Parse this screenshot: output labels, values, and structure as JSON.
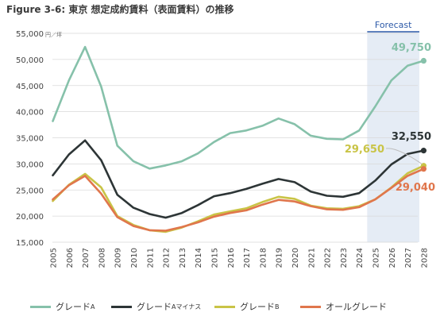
{
  "title": "Figure 3-6: 東京 想定成約賃料（表面賃料）の推移",
  "chart_data": {
    "type": "line",
    "title": "Figure 3-6: 東京 想定成約賃料（表面賃料）の推移",
    "ylabel_unit": "円／坪",
    "x": [
      "2005",
      "2006",
      "2007",
      "2008",
      "2009",
      "2010",
      "2011",
      "2012",
      "2013",
      "2014",
      "2015",
      "2016",
      "2017",
      "2018",
      "2019",
      "2020",
      "2021",
      "2022",
      "2023",
      "2024",
      "2025",
      "2026",
      "2027",
      "2028"
    ],
    "ylim": [
      15000,
      55000
    ],
    "yticks": [
      "15,000",
      "20,000",
      "25,000",
      "30,000",
      "35,000",
      "40,000",
      "45,000",
      "50,000",
      "55,000"
    ],
    "grid": true,
    "forecast_label": "Forecast",
    "forecast_start": "2025",
    "forecast_end": "2028",
    "legend_position": "bottom",
    "series": [
      {
        "name": "グレードA",
        "color": "#86c1aa",
        "values": [
          38200,
          46000,
          52400,
          44800,
          33500,
          30500,
          29100,
          29700,
          30500,
          32000,
          34200,
          35900,
          36400,
          37300,
          38700,
          37600,
          35400,
          34800,
          34700,
          36400,
          41000,
          46000,
          48800,
          49750
        ]
      },
      {
        "name": "グレードAマイナス",
        "color": "#2d3536",
        "values": [
          27800,
          31800,
          34500,
          30700,
          24100,
          21600,
          20400,
          19700,
          20600,
          22100,
          23800,
          24400,
          25200,
          26200,
          27100,
          26500,
          24700,
          23900,
          23700,
          24400,
          26800,
          29900,
          31900,
          32550
        ]
      },
      {
        "name": "グレードB",
        "color": "#c9c446",
        "values": [
          22900,
          26000,
          28100,
          25500,
          20000,
          18300,
          17300,
          17000,
          17800,
          19000,
          20300,
          20900,
          21500,
          22700,
          23700,
          23300,
          22000,
          21500,
          21400,
          21900,
          23200,
          25500,
          28200,
          29650
        ]
      },
      {
        "name": "オールグレード",
        "color": "#e0764c",
        "values": [
          23200,
          25900,
          27700,
          24300,
          19800,
          18100,
          17300,
          17200,
          17900,
          18800,
          19900,
          20600,
          21100,
          22200,
          23100,
          22800,
          21900,
          21300,
          21200,
          21700,
          23200,
          25400,
          27700,
          29040
        ]
      }
    ],
    "end_labels": [
      {
        "text": "49,750",
        "color": "#86c1aa"
      },
      {
        "text": "32,550",
        "color": "#2d3536"
      },
      {
        "text": "29,650",
        "color": "#c9c446"
      },
      {
        "text": "29,040",
        "color": "#e0764c"
      }
    ]
  },
  "legend": {
    "items": [
      {
        "main": "グレード",
        "sub": "A",
        "color": "#86c1aa"
      },
      {
        "main": "グレード",
        "sub": "Aマイナス",
        "color": "#2d3536"
      },
      {
        "main": "グレード",
        "sub": "B",
        "color": "#c9c446"
      },
      {
        "main": "オールグレード",
        "sub": "",
        "color": "#e0764c"
      }
    ]
  }
}
